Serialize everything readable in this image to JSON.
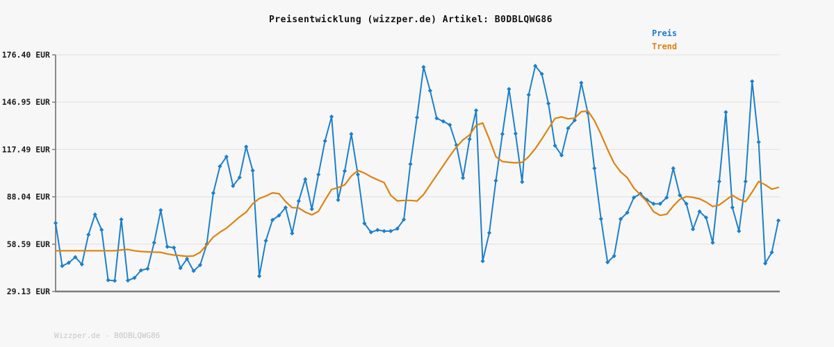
{
  "chart": {
    "title": "Preisentwicklung (wizzper.de) Artikel: B0DBLQWG86",
    "footer": "Wizzper.de - B0DBLQWG86",
    "legend": {
      "items": [
        {
          "label": "Preis",
          "color": "#1c7fc9"
        },
        {
          "label": "Trend",
          "color": "#dc830f"
        }
      ]
    },
    "y_axis": {
      "unit": "EUR",
      "ticks": [
        {
          "label": "176.40 EUR",
          "value": 176.4
        },
        {
          "label": "146.95 EUR",
          "value": 146.95
        },
        {
          "label": "117.49 EUR",
          "value": 117.49
        },
        {
          "label": "88.04 EUR",
          "value": 88.04
        },
        {
          "label": "58.59 EUR",
          "value": 58.59
        },
        {
          "label": "29.13 EUR",
          "value": 29.13
        }
      ]
    },
    "colors": {
      "grid": "#e4e4e4",
      "axis": "#7d7d7d",
      "tick_label": "#1c1c1c"
    }
  },
  "chart_data": {
    "type": "line",
    "x_axis": {
      "type": "index",
      "labels_visible": false
    },
    "ylim": [
      29.13,
      176.4
    ],
    "y_tick_values": [
      176.4,
      146.95,
      117.49,
      88.04,
      58.59,
      29.13
    ],
    "grid": "horizontal-only",
    "legend_position": "top-right",
    "series": [
      {
        "name": "Preis",
        "color": "#1c7fc9",
        "marker": "diamond",
        "values": [
          71.7,
          45.0,
          47.0,
          50.5,
          46.0,
          64.5,
          77.0,
          67.5,
          36.2,
          35.8,
          74.0,
          36.0,
          37.6,
          42.3,
          43.3,
          59.5,
          79.7,
          57.0,
          56.4,
          43.7,
          49.4,
          41.9,
          45.6,
          58.5,
          90.4,
          107.0,
          113.0,
          94.8,
          100.1,
          119.2,
          104.4,
          38.7,
          60.7,
          73.6,
          76.4,
          81.4,
          65.3,
          85.4,
          99.0,
          80.4,
          101.9,
          122.8,
          137.9,
          86.1,
          104.1,
          127.1,
          101.9,
          71.5,
          66.0,
          67.4,
          66.7,
          66.7,
          68.2,
          73.9,
          108.4,
          137.4,
          168.8,
          154.1,
          136.9,
          135.0,
          132.8,
          120.2,
          99.8,
          123.9,
          141.8,
          48.0,
          65.6,
          98.1,
          127.1,
          155.1,
          127.4,
          97.3,
          151.5,
          169.5,
          164.5,
          146.1,
          119.9,
          113.9,
          130.7,
          135.7,
          159.0,
          140.3,
          105.8,
          74.3,
          47.3,
          51.2,
          74.2,
          78.2,
          87.6,
          90.0,
          86.1,
          83.7,
          83.7,
          87.6,
          105.8,
          89.0,
          83.7,
          67.9,
          78.9,
          75.1,
          59.5,
          97.6,
          140.7,
          81.4,
          66.7,
          97.6,
          159.9,
          122.1,
          46.6,
          53.5,
          73.3
        ]
      },
      {
        "name": "Trend",
        "color": "#dc830f",
        "marker": "none",
        "values": [
          54.5,
          54.5,
          54.5,
          54.5,
          54.5,
          54.5,
          54.5,
          54.5,
          54.5,
          54.5,
          55.0,
          55.3,
          54.5,
          54.0,
          53.8,
          53.6,
          53.5,
          52.5,
          51.8,
          51.4,
          51.0,
          51.3,
          53.5,
          58.1,
          63.0,
          66.0,
          68.5,
          72.0,
          75.5,
          78.5,
          83.7,
          87.0,
          88.5,
          90.5,
          90.0,
          85.0,
          81.3,
          81.1,
          78.5,
          76.8,
          79.0,
          86.0,
          92.6,
          93.8,
          95.5,
          101.0,
          104.4,
          102.8,
          100.5,
          98.6,
          96.9,
          89.0,
          85.5,
          85.8,
          85.8,
          85.4,
          89.5,
          95.5,
          101.5,
          107.5,
          113.5,
          119.0,
          123.5,
          126.5,
          132.5,
          134.0,
          124.0,
          113.0,
          110.0,
          109.5,
          109.2,
          109.5,
          113.0,
          118.0,
          124.0,
          130.5,
          136.8,
          137.8,
          136.6,
          137.0,
          141.0,
          141.5,
          135.5,
          127.0,
          117.5,
          109.0,
          103.5,
          100.0,
          93.5,
          89.2,
          85.0,
          78.8,
          76.5,
          77.2,
          82.3,
          86.5,
          88.2,
          87.7,
          86.8,
          84.8,
          82.0,
          83.0,
          86.0,
          89.0,
          86.5,
          85.0,
          91.0,
          97.6,
          95.5,
          92.8,
          93.9
        ]
      }
    ]
  }
}
